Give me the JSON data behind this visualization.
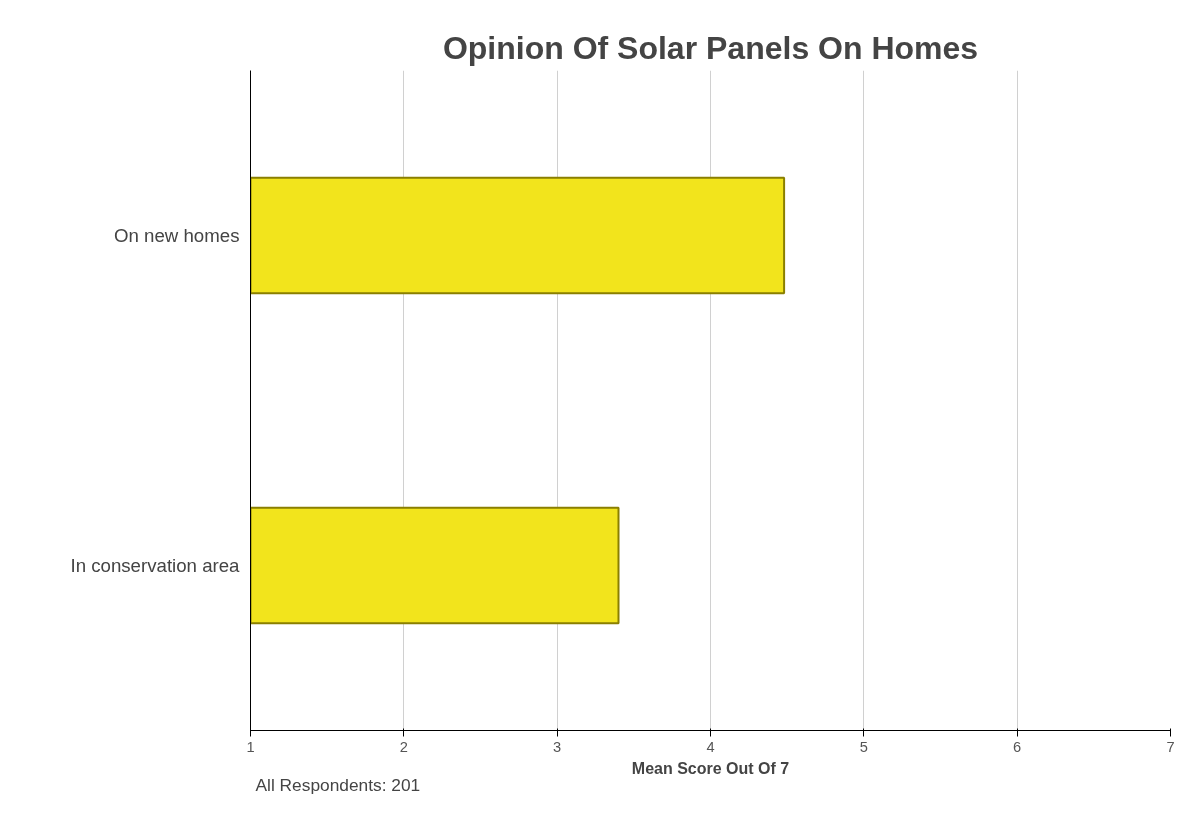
{
  "chart_data": {
    "type": "bar",
    "orientation": "horizontal",
    "title": "Opinion Of Solar Panels On Homes",
    "xlabel": "Mean Score Out Of 7",
    "categories": [
      "On new homes",
      "In conservation area"
    ],
    "values": [
      4.48,
      3.4
    ],
    "color": "#f2e41c",
    "xlim": [
      1,
      7
    ],
    "xticks": [
      1,
      2,
      3,
      4,
      5,
      6,
      7
    ],
    "grid": "x",
    "annotations": [
      "All Respondents: 201"
    ]
  }
}
